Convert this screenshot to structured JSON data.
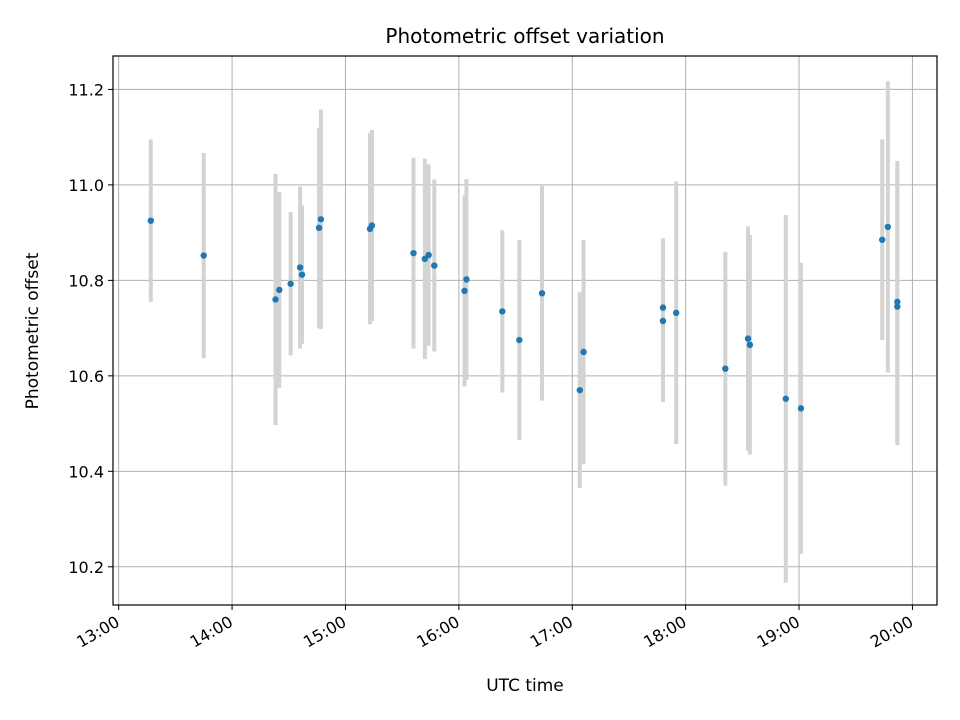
{
  "chart_data": {
    "type": "scatter",
    "title": "Photometric offset variation",
    "xlabel": "UTC time",
    "ylabel": "Photometric offset",
    "x_ticks": [
      "13:00",
      "14:00",
      "15:00",
      "16:00",
      "17:00",
      "18:00",
      "19:00",
      "20:00"
    ],
    "y_ticks": [
      "10.2",
      "10.4",
      "10.6",
      "10.8",
      "11.0",
      "11.2"
    ],
    "xlim": [
      "12:57",
      "20:13"
    ],
    "ylim": [
      10.12,
      11.27
    ],
    "grid": true,
    "colors": {
      "points": "#1f77b4",
      "errorbars": "#d3d3d3",
      "grid": "#b0b0b0"
    },
    "series": [
      {
        "points": [
          {
            "x": "13:17",
            "y": 10.925,
            "ylo": 10.755,
            "yhi": 11.095
          },
          {
            "x": "13:45",
            "y": 10.852,
            "ylo": 10.637,
            "yhi": 11.067
          },
          {
            "x": "14:23",
            "y": 10.76,
            "ylo": 10.497,
            "yhi": 11.023
          },
          {
            "x": "14:25",
            "y": 10.78,
            "ylo": 10.575,
            "yhi": 10.985
          },
          {
            "x": "14:31",
            "y": 10.793,
            "ylo": 10.643,
            "yhi": 10.943
          },
          {
            "x": "14:36",
            "y": 10.827,
            "ylo": 10.657,
            "yhi": 10.997
          },
          {
            "x": "14:37",
            "y": 10.812,
            "ylo": 10.667,
            "yhi": 10.957
          },
          {
            "x": "14:46",
            "y": 10.91,
            "ylo": 10.7,
            "yhi": 11.12
          },
          {
            "x": "14:47",
            "y": 10.928,
            "ylo": 10.698,
            "yhi": 11.158
          },
          {
            "x": "15:13",
            "y": 10.908,
            "ylo": 10.708,
            "yhi": 11.108
          },
          {
            "x": "15:14",
            "y": 10.915,
            "ylo": 10.715,
            "yhi": 11.115
          },
          {
            "x": "15:36",
            "y": 10.857,
            "ylo": 10.657,
            "yhi": 11.057
          },
          {
            "x": "15:42",
            "y": 10.845,
            "ylo": 10.635,
            "yhi": 11.055
          },
          {
            "x": "15:44",
            "y": 10.853,
            "ylo": 10.663,
            "yhi": 11.043
          },
          {
            "x": "15:47",
            "y": 10.831,
            "ylo": 10.651,
            "yhi": 11.011
          },
          {
            "x": "16:03",
            "y": 10.778,
            "ylo": 10.578,
            "yhi": 10.978
          },
          {
            "x": "16:04",
            "y": 10.802,
            "ylo": 10.592,
            "yhi": 11.012
          },
          {
            "x": "16:23",
            "y": 10.735,
            "ylo": 10.565,
            "yhi": 10.905
          },
          {
            "x": "16:32",
            "y": 10.675,
            "ylo": 10.465,
            "yhi": 10.885
          },
          {
            "x": "16:44",
            "y": 10.773,
            "ylo": 10.548,
            "yhi": 10.998
          },
          {
            "x": "17:04",
            "y": 10.57,
            "ylo": 10.365,
            "yhi": 10.775
          },
          {
            "x": "17:06",
            "y": 10.65,
            "ylo": 10.415,
            "yhi": 10.885
          },
          {
            "x": "17:48",
            "y": 10.743,
            "ylo": 10.598,
            "yhi": 10.888
          },
          {
            "x": "17:48",
            "y": 10.715,
            "ylo": 10.545,
            "yhi": 10.885
          },
          {
            "x": "17:55",
            "y": 10.732,
            "ylo": 10.457,
            "yhi": 11.007
          },
          {
            "x": "18:21",
            "y": 10.615,
            "ylo": 10.37,
            "yhi": 10.86
          },
          {
            "x": "18:33",
            "y": 10.678,
            "ylo": 10.443,
            "yhi": 10.913
          },
          {
            "x": "18:34",
            "y": 10.665,
            "ylo": 10.435,
            "yhi": 10.895
          },
          {
            "x": "18:53",
            "y": 10.552,
            "ylo": 10.167,
            "yhi": 10.937
          },
          {
            "x": "19:01",
            "y": 10.532,
            "ylo": 10.227,
            "yhi": 10.837
          },
          {
            "x": "19:44",
            "y": 10.885,
            "ylo": 10.675,
            "yhi": 11.095
          },
          {
            "x": "19:47",
            "y": 10.912,
            "ylo": 10.607,
            "yhi": 11.217
          },
          {
            "x": "19:52",
            "y": 10.755,
            "ylo": 10.46,
            "yhi": 11.05
          },
          {
            "x": "19:52",
            "y": 10.745,
            "ylo": 10.455,
            "yhi": 11.035
          }
        ]
      }
    ]
  }
}
